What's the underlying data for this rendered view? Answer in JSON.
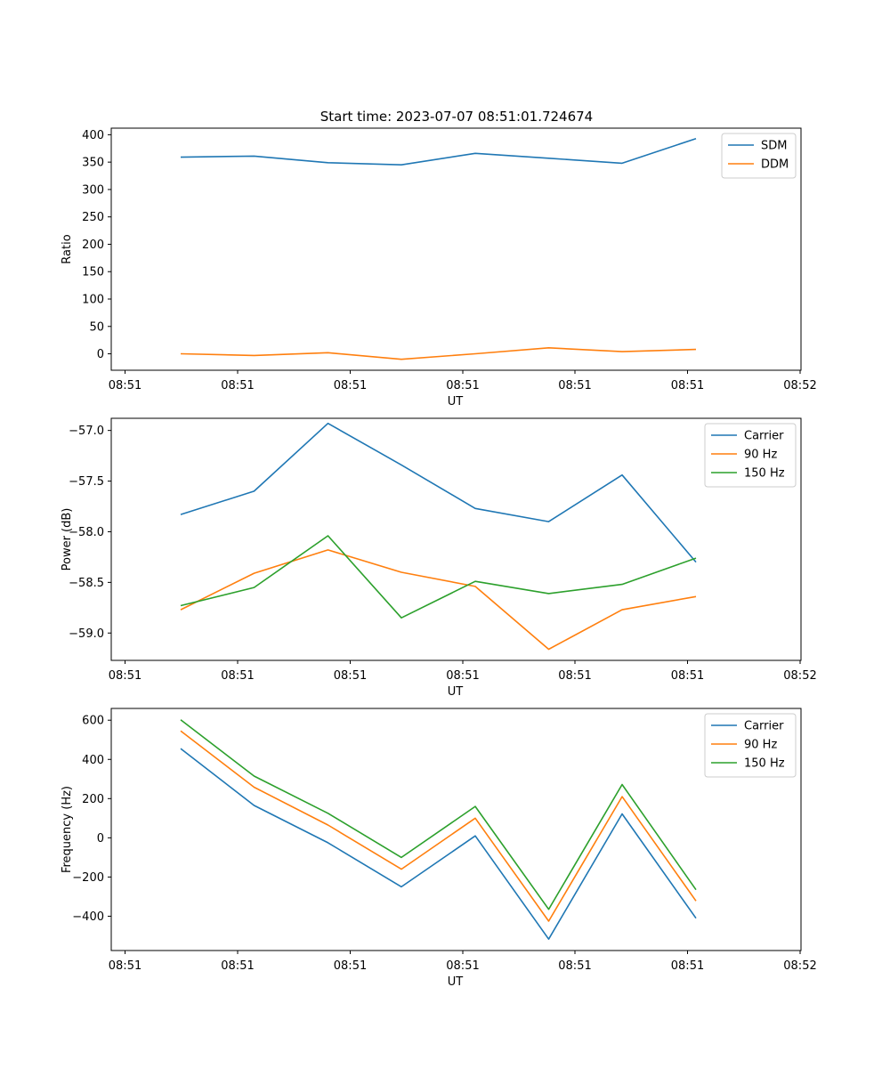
{
  "title": "Start time: 2023-07-07 08:51:01.724674",
  "colors": {
    "blue": "#1f77b4",
    "orange": "#ff7f0e",
    "green": "#2ca02c"
  },
  "chart_data": [
    {
      "type": "line",
      "xlabel": "UT",
      "ylabel": "Ratio",
      "x_ticks": [
        "08:51",
        "08:51",
        "08:51",
        "08:51",
        "08:51",
        "08:51",
        "08:52"
      ],
      "yticks": [
        "0",
        "50",
        "100",
        "150",
        "200",
        "250",
        "300",
        "350",
        "400"
      ],
      "ylim": [
        -30,
        412
      ],
      "legend": "top-right",
      "series": [
        {
          "name": "SDM",
          "color": "#1f77b4",
          "values": [
            359,
            361,
            349,
            345,
            366,
            357,
            348,
            393
          ]
        },
        {
          "name": "DDM",
          "color": "#ff7f0e",
          "values": [
            0,
            -3,
            2,
            -10,
            0,
            11,
            4,
            8
          ]
        }
      ]
    },
    {
      "type": "line",
      "xlabel": "UT",
      "ylabel": "Power (dB)",
      "x_ticks": [
        "08:51",
        "08:51",
        "08:51",
        "08:51",
        "08:51",
        "08:51",
        "08:52"
      ],
      "yticks": [
        "−59.0",
        "−58.5",
        "−58.0",
        "−57.5",
        "−57.0"
      ],
      "ylim": [
        -59.27,
        -56.88
      ],
      "legend": "top-right",
      "series": [
        {
          "name": "Carrier",
          "color": "#1f77b4",
          "values": [
            -57.83,
            -57.6,
            -56.93,
            -57.34,
            -57.77,
            -57.9,
            -57.44,
            -58.3
          ]
        },
        {
          "name": "90 Hz",
          "color": "#ff7f0e",
          "values": [
            -58.77,
            -58.41,
            -58.18,
            -58.4,
            -58.54,
            -59.16,
            -58.77,
            -58.64
          ]
        },
        {
          "name": "150 Hz",
          "color": "#2ca02c",
          "values": [
            -58.73,
            -58.55,
            -58.04,
            -58.85,
            -58.49,
            -58.61,
            -58.52,
            -58.26
          ]
        }
      ]
    },
    {
      "type": "line",
      "xlabel": "UT",
      "ylabel": "Frequency (Hz)",
      "x_ticks": [
        "08:51",
        "08:51",
        "08:51",
        "08:51",
        "08:51",
        "08:51",
        "08:52"
      ],
      "yticks": [
        "−400",
        "−200",
        "0",
        "200",
        "400",
        "600"
      ],
      "ylim": [
        -575,
        660
      ],
      "legend": "top-right",
      "series": [
        {
          "name": "Carrier",
          "color": "#1f77b4",
          "values": [
            455,
            165,
            -25,
            -250,
            10,
            -517,
            122,
            -410
          ]
        },
        {
          "name": "90 Hz",
          "color": "#ff7f0e",
          "values": [
            545,
            258,
            65,
            -160,
            100,
            -425,
            210,
            -322
          ]
        },
        {
          "name": "150 Hz",
          "color": "#2ca02c",
          "values": [
            602,
            315,
            125,
            -100,
            160,
            -365,
            272,
            -265
          ]
        }
      ]
    }
  ]
}
